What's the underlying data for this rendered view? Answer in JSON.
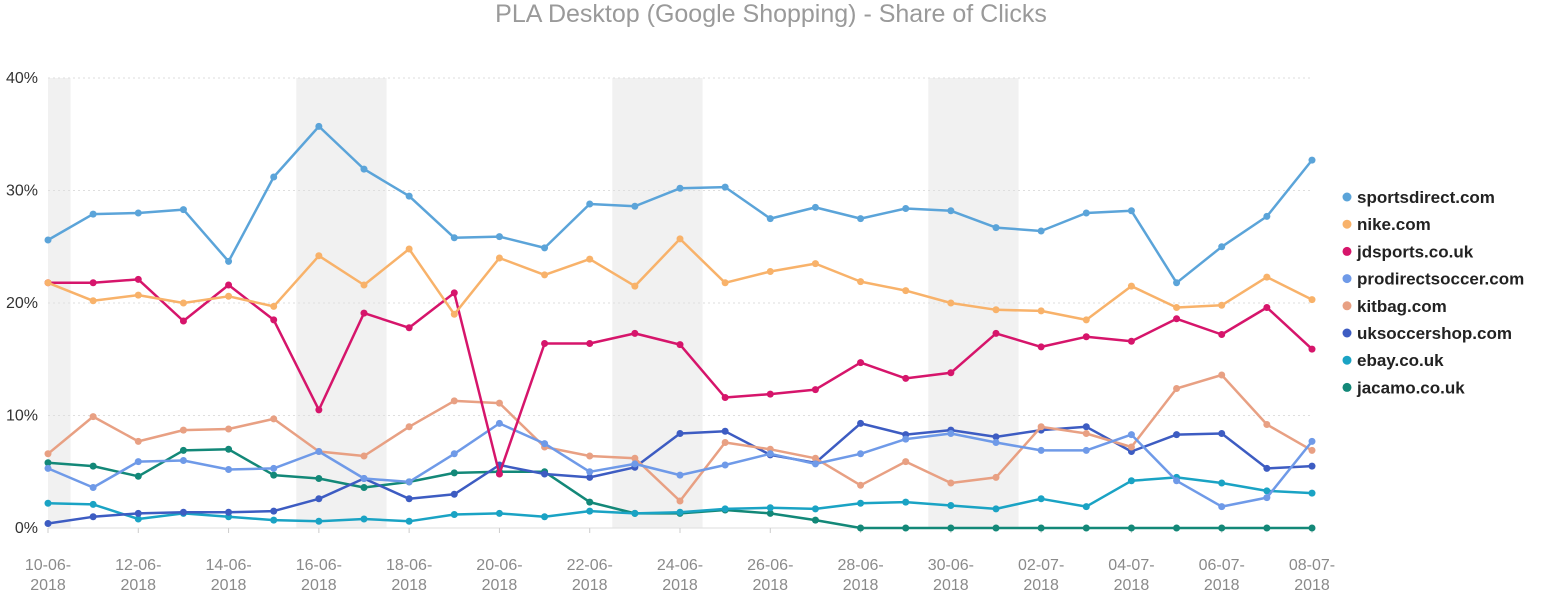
{
  "chart_data": {
    "type": "line",
    "title": "PLA Desktop (Google Shopping) - Share of Clicks",
    "xlabel": "",
    "ylabel": "",
    "ylim": [
      0,
      40
    ],
    "yticks": [
      0,
      10,
      20,
      30,
      40
    ],
    "ytick_labels": [
      "0%",
      "10%",
      "20%",
      "30%",
      "40%"
    ],
    "x": [
      "10-06-2018",
      "11-06-2018",
      "12-06-2018",
      "13-06-2018",
      "14-06-2018",
      "15-06-2018",
      "16-06-2018",
      "17-06-2018",
      "18-06-2018",
      "19-06-2018",
      "20-06-2018",
      "21-06-2018",
      "22-06-2018",
      "23-06-2018",
      "24-06-2018",
      "25-06-2018",
      "26-06-2018",
      "27-06-2018",
      "28-06-2018",
      "29-06-2018",
      "30-06-2018",
      "01-07-2018",
      "02-07-2018",
      "03-07-2018",
      "04-07-2018",
      "05-07-2018",
      "06-07-2018",
      "07-07-2018",
      "08-07-2018"
    ],
    "xtick_labels": [
      {
        "line1": "10-06-",
        "line2": "2018",
        "index": 0
      },
      {
        "line1": "12-06-",
        "line2": "2018",
        "index": 2
      },
      {
        "line1": "14-06-",
        "line2": "2018",
        "index": 4
      },
      {
        "line1": "16-06-",
        "line2": "2018",
        "index": 6
      },
      {
        "line1": "18-06-",
        "line2": "2018",
        "index": 8
      },
      {
        "line1": "20-06-",
        "line2": "2018",
        "index": 10
      },
      {
        "line1": "22-06-",
        "line2": "2018",
        "index": 12
      },
      {
        "line1": "24-06-",
        "line2": "2018",
        "index": 14
      },
      {
        "line1": "26-06-",
        "line2": "2018",
        "index": 16
      },
      {
        "line1": "28-06-",
        "line2": "2018",
        "index": 18
      },
      {
        "line1": "30-06-",
        "line2": "2018",
        "index": 20
      },
      {
        "line1": "02-07-",
        "line2": "2018",
        "index": 22
      },
      {
        "line1": "04-07-",
        "line2": "2018",
        "index": 24
      },
      {
        "line1": "06-07-",
        "line2": "2018",
        "index": 26
      },
      {
        "line1": "08-07-",
        "line2": "2018",
        "index": 28
      }
    ],
    "weekend_bands": [
      [
        0,
        0.5
      ],
      [
        5.5,
        7.5
      ],
      [
        12.5,
        14.5
      ],
      [
        19.5,
        21.5
      ]
    ],
    "grid": true,
    "legend_position": "right",
    "series": [
      {
        "name": "sportsdirect.com",
        "color": "#5ba4d9",
        "values": [
          25.6,
          27.9,
          28.0,
          28.3,
          23.7,
          31.2,
          35.7,
          31.9,
          29.5,
          25.8,
          25.9,
          24.9,
          28.8,
          28.6,
          30.2,
          30.3,
          27.5,
          28.5,
          27.5,
          28.4,
          28.2,
          26.7,
          26.4,
          28.0,
          28.2,
          21.8,
          25.0,
          27.7,
          32.7
        ]
      },
      {
        "name": "nike.com",
        "color": "#f8b26a",
        "values": [
          21.8,
          20.2,
          20.7,
          20.0,
          20.6,
          19.7,
          24.2,
          21.6,
          24.8,
          19.0,
          24.0,
          22.5,
          23.9,
          21.5,
          25.7,
          21.8,
          22.8,
          23.5,
          21.9,
          21.1,
          20.0,
          19.4,
          19.3,
          18.5,
          21.5,
          19.6,
          19.8,
          22.3,
          20.3
        ]
      },
      {
        "name": "jdsports.co.uk",
        "color": "#d6156b",
        "values": [
          21.8,
          21.8,
          22.1,
          18.4,
          21.6,
          18.5,
          10.5,
          19.1,
          17.8,
          20.9,
          4.8,
          16.4,
          16.4,
          17.3,
          16.3,
          11.6,
          11.9,
          12.3,
          14.7,
          13.3,
          13.8,
          17.3,
          16.1,
          17.0,
          16.6,
          18.6,
          17.2,
          19.6,
          15.9
        ]
      },
      {
        "name": "prodirectsoccer.com",
        "color": "#6f9ae8",
        "values": [
          5.3,
          3.6,
          5.9,
          6.0,
          5.2,
          5.3,
          6.8,
          4.4,
          4.1,
          6.6,
          9.3,
          7.5,
          5.0,
          5.7,
          4.7,
          5.6,
          6.6,
          5.7,
          6.6,
          7.9,
          8.4,
          7.6,
          6.9,
          6.9,
          8.3,
          4.2,
          1.9,
          2.7,
          7.7
        ]
      },
      {
        "name": "kitbag.com",
        "color": "#e8a083",
        "values": [
          6.6,
          9.9,
          7.7,
          8.7,
          8.8,
          9.7,
          6.8,
          6.4,
          9.0,
          11.3,
          11.1,
          7.2,
          6.4,
          6.2,
          2.4,
          7.6,
          7.0,
          6.2,
          3.8,
          5.9,
          4.0,
          4.5,
          9.0,
          8.4,
          7.2,
          12.4,
          13.6,
          9.2,
          6.9
        ]
      },
      {
        "name": "uksoccershop.com",
        "color": "#3d5cc2",
        "values": [
          0.4,
          1.0,
          1.3,
          1.4,
          1.4,
          1.5,
          2.6,
          4.4,
          2.6,
          3.0,
          5.6,
          4.8,
          4.5,
          5.4,
          8.4,
          8.6,
          6.5,
          5.8,
          9.3,
          8.3,
          8.7,
          8.1,
          8.7,
          9.0,
          6.8,
          8.3,
          8.4,
          5.3,
          5.5
        ]
      },
      {
        "name": "ebay.co.uk",
        "color": "#1aa3c4",
        "values": [
          2.2,
          2.1,
          0.8,
          1.3,
          1.0,
          0.7,
          0.6,
          0.8,
          0.6,
          1.2,
          1.3,
          1.0,
          1.5,
          1.3,
          1.4,
          1.7,
          1.8,
          1.7,
          2.2,
          2.3,
          2.0,
          1.7,
          2.6,
          1.9,
          4.2,
          4.5,
          4.0,
          3.3,
          3.1
        ]
      },
      {
        "name": "jacamo.co.uk",
        "color": "#138878",
        "values": [
          5.8,
          5.5,
          4.6,
          6.9,
          7.0,
          4.7,
          4.4,
          3.6,
          4.1,
          4.9,
          5.0,
          5.0,
          2.3,
          1.3,
          1.3,
          1.6,
          1.3,
          0.7,
          0.0,
          0.0,
          0.0,
          0.0,
          0.0,
          0.0,
          0.0,
          0.0,
          0.0,
          0.0,
          0.0
        ]
      }
    ]
  }
}
